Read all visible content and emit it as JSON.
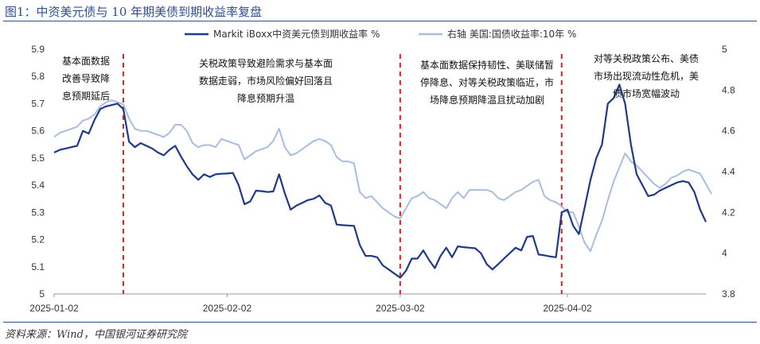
{
  "header": {
    "title": "图1：中资美元债与 10 年期美债到期收益率复盘"
  },
  "footer": {
    "source": "资料来源：Wind，中国银河证券研究院"
  },
  "chart_data": {
    "type": "line",
    "title": "中资美元债与 10 年期美债到期收益率复盘",
    "x_ticks": [
      "2025-01-02",
      "2025-02-02",
      "2025-03-02",
      "2025-04-02"
    ],
    "y_left": {
      "range": [
        5.0,
        5.9
      ],
      "ticks": [
        "5",
        "5.1",
        "5.2",
        "5.3",
        "5.4",
        "5.5",
        "5.6",
        "5.7",
        "5.8",
        "5.9"
      ]
    },
    "y_right": {
      "range": [
        3.8,
        5.0
      ],
      "ticks": [
        "3.8",
        "4",
        "4.2",
        "4.4",
        "4.6",
        "4.8",
        "5"
      ]
    },
    "legend": {
      "placement": "top",
      "entries": [
        "Markit iBoxx中资美元债到期收益率 %",
        "右轴 美国:国债收益率:10年 %"
      ]
    },
    "series": [
      {
        "name": "Markit iBoxx中资美元债到期收益率 %",
        "axis": "left",
        "color": "#1f3a8a",
        "values": [
          5.52,
          5.53,
          5.535,
          5.54,
          5.545,
          5.6,
          5.59,
          5.64,
          5.68,
          5.69,
          5.695,
          5.7,
          5.68,
          5.56,
          5.54,
          5.555,
          5.545,
          5.535,
          5.52,
          5.51,
          5.53,
          5.545,
          5.505,
          5.47,
          5.44,
          5.42,
          5.44,
          5.43,
          5.44,
          5.442,
          5.443,
          5.445,
          5.4,
          5.33,
          5.34,
          5.38,
          5.378,
          5.375,
          5.377,
          5.44,
          5.37,
          5.31,
          5.325,
          5.335,
          5.345,
          5.35,
          5.362,
          5.335,
          5.325,
          5.255,
          5.253,
          5.252,
          5.25,
          5.18,
          5.14,
          5.14,
          5.135,
          5.105,
          5.09,
          5.075,
          5.06,
          5.085,
          5.13,
          5.13,
          5.16,
          5.125,
          5.095,
          5.14,
          5.17,
          5.135,
          5.175,
          5.172,
          5.17,
          5.168,
          5.15,
          5.11,
          5.09,
          5.11,
          5.13,
          5.15,
          5.17,
          5.16,
          5.21,
          5.213,
          5.145,
          5.142,
          5.138,
          5.135,
          5.3,
          5.31,
          5.25,
          5.22,
          5.32,
          5.42,
          5.5,
          5.55,
          5.7,
          5.72,
          5.77,
          5.7,
          5.55,
          5.44,
          5.4,
          5.36,
          5.365,
          5.38,
          5.39,
          5.4,
          5.41,
          5.415,
          5.41,
          5.375,
          5.31,
          5.265
        ]
      },
      {
        "name": "右轴 美国:国债收益率:10年 %",
        "axis": "right",
        "color": "#a8bde0",
        "values": [
          4.57,
          4.59,
          4.6,
          4.61,
          4.62,
          4.65,
          4.66,
          4.68,
          4.72,
          4.74,
          4.75,
          4.74,
          4.73,
          4.66,
          4.61,
          4.6,
          4.6,
          4.59,
          4.58,
          4.57,
          4.59,
          4.63,
          4.63,
          4.6,
          4.54,
          4.52,
          4.53,
          4.53,
          4.52,
          4.56,
          4.55,
          4.54,
          4.53,
          4.46,
          4.48,
          4.5,
          4.51,
          4.52,
          4.55,
          4.61,
          4.52,
          4.48,
          4.49,
          4.51,
          4.53,
          4.55,
          4.56,
          4.55,
          4.53,
          4.47,
          4.45,
          4.45,
          4.44,
          4.3,
          4.27,
          4.28,
          4.25,
          4.22,
          4.2,
          4.18,
          4.17,
          4.22,
          4.27,
          4.28,
          4.3,
          4.27,
          4.26,
          4.24,
          4.22,
          4.27,
          4.3,
          4.27,
          4.31,
          4.31,
          4.31,
          4.31,
          4.3,
          4.27,
          4.26,
          4.28,
          4.3,
          4.31,
          4.33,
          4.35,
          4.36,
          4.28,
          4.26,
          4.25,
          4.23,
          4.2,
          4.2,
          4.13,
          4.05,
          4.01,
          4.09,
          4.16,
          4.26,
          4.35,
          4.42,
          4.49,
          4.45,
          4.43,
          4.4,
          4.37,
          4.34,
          4.32,
          4.34,
          4.37,
          4.38,
          4.4,
          4.41,
          4.4,
          4.39,
          4.34,
          4.29
        ]
      }
    ],
    "events": [
      {
        "index": 12,
        "lines": [
          "基本面数据",
          "改善导致降",
          "息预期延后"
        ]
      },
      {
        "index": 60,
        "lines": [
          "关税政策导致避险需求与基本面",
          "数据走弱，市场风险偏好回落且",
          "降息预期升温"
        ]
      },
      {
        "index": 88,
        "lines": [
          "基本面数据保持韧性、美联储暂",
          "停降息、对等关税政策临近，市",
          "场降息预期降温且扰动加剧"
        ]
      },
      {
        "index": null,
        "lines": [
          "对等关税政策公布、美债",
          "市场出现流动性危机，美",
          "债市场宽幅波动"
        ]
      }
    ]
  }
}
